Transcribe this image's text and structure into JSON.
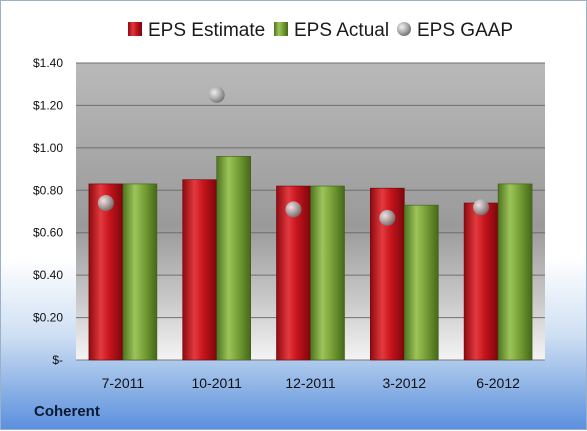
{
  "chart_data": {
    "type": "bar",
    "categories": [
      "7-2011",
      "10-2011",
      "12-2011",
      "3-2012",
      "6-2012"
    ],
    "series": [
      {
        "name": "EPS Estimate",
        "kind": "bar",
        "color": "#c8141c",
        "values": [
          0.83,
          0.85,
          0.82,
          0.81,
          0.74
        ]
      },
      {
        "name": "EPS Actual",
        "kind": "bar",
        "color": "#7aa43a",
        "values": [
          0.83,
          0.96,
          0.82,
          0.73,
          0.83
        ]
      },
      {
        "name": "EPS GAAP",
        "kind": "scatter",
        "color": "#a8a8a8",
        "values": [
          0.74,
          1.25,
          0.71,
          0.67,
          0.72
        ]
      }
    ],
    "yticks": [
      "$-",
      "$0.20",
      "$0.40",
      "$0.60",
      "$0.80",
      "$1.00",
      "$1.20",
      "$1.40"
    ],
    "ylim": [
      0,
      1.4
    ],
    "legend_position": "top",
    "grid": true
  },
  "footer": {
    "company": "Coherent"
  }
}
